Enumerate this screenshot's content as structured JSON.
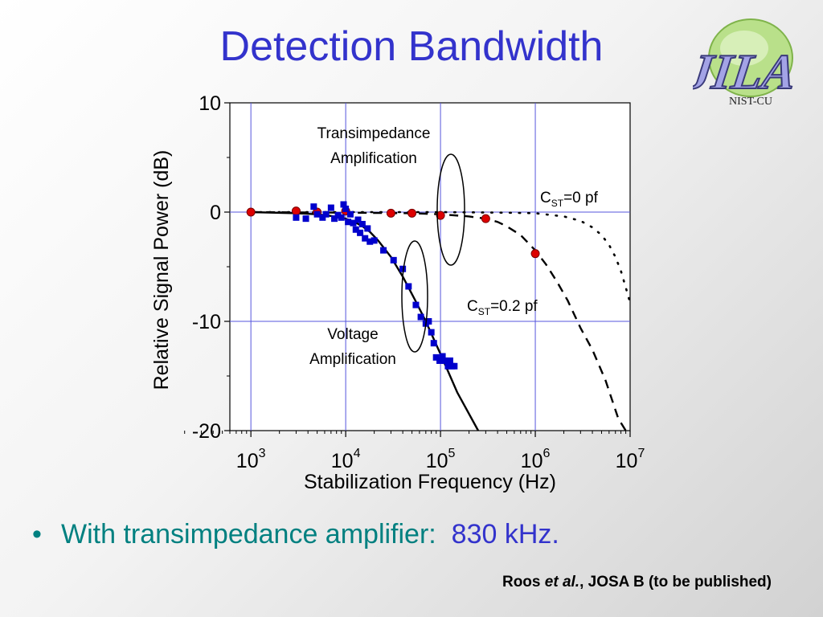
{
  "slide": {
    "title": "Detection Bandwidth",
    "bullet_marker": "•",
    "bullet_text": "With transimpedance amplifier:",
    "bullet_value": "830 kHz.",
    "citation_author": "Roos ",
    "citation_etal": "et al.",
    "citation_rest": ", JOSA B (to be published)",
    "logo_text": "JILA",
    "logo_subtext": "NIST-CU"
  },
  "colors": {
    "title": "#3333cc",
    "bullet": "#008080",
    "highlight": "#3333cc",
    "grid": "#5555dd",
    "red_points": "#dd0000",
    "blue_points": "#0000cc"
  },
  "chart_data": {
    "type": "scatter",
    "x_scale": "log",
    "xlim": [
      600,
      10000000
    ],
    "ylim": [
      -20,
      10
    ],
    "xlabel": "Stabilization Frequency (Hz)",
    "ylabel": "Relative Signal Power (dB)",
    "x_ticks": [
      {
        "base": "10",
        "exp": "3",
        "value": 1000
      },
      {
        "base": "10",
        "exp": "4",
        "value": 10000
      },
      {
        "base": "10",
        "exp": "5",
        "value": 100000
      },
      {
        "base": "10",
        "exp": "6",
        "value": 1000000
      },
      {
        "base": "10",
        "exp": "7",
        "value": 10000000
      }
    ],
    "y_ticks": [
      {
        "label": "10",
        "value": 10
      },
      {
        "label": "0",
        "value": 0
      },
      {
        "label": "-10",
        "value": -10
      },
      {
        "label": "-20",
        "value": -20
      }
    ],
    "grid_x": [
      1000,
      10000,
      100000,
      1000000
    ],
    "grid_y": [
      0,
      -10
    ],
    "annotations": {
      "trans_line1": "Transimpedance",
      "trans_line2": "Amplification",
      "volt_line1": "Voltage",
      "volt_line2": "Amplification",
      "c0_main": "C",
      "c0_sub": "ST",
      "c0_rest": "=0 pf",
      "c02_main": "C",
      "c02_sub": "ST",
      "c02_rest": "=0.2 pf"
    },
    "series": [
      {
        "marker": "circle",
        "x": [
          1000,
          3000,
          5000,
          10000,
          30000,
          50000,
          100000,
          300000,
          1000000
        ],
        "y": [
          0.0,
          0.1,
          0.0,
          0.1,
          -0.1,
          -0.1,
          -0.3,
          -0.6,
          -3.8
        ]
      },
      {
        "marker": "square",
        "x": [
          3000,
          3800,
          4600,
          5000,
          5700,
          6200,
          7000,
          7600,
          8300,
          9000,
          9500,
          10000,
          10600,
          11200,
          12000,
          12800,
          13500,
          14200,
          15000,
          16000,
          17000,
          18000,
          20000,
          25000,
          32000,
          40000,
          46000,
          55000,
          62000,
          70000,
          75000,
          80000,
          85000,
          90000,
          98000,
          105000,
          112000,
          120000,
          126000,
          132000,
          140000
        ],
        "y": [
          -0.5,
          -0.6,
          0.5,
          -0.2,
          -0.5,
          -0.2,
          0.4,
          -0.6,
          -0.3,
          -0.5,
          0.7,
          0.3,
          -0.9,
          -0.2,
          -1.0,
          -1.6,
          -0.7,
          -1.9,
          -1.1,
          -2.4,
          -1.5,
          -2.7,
          -2.6,
          -3.5,
          -4.4,
          -5.2,
          -6.8,
          -8.5,
          -9.6,
          -10.2,
          -10.0,
          -11.0,
          -12.0,
          -13.3,
          -13.6,
          -13.2,
          -13.6,
          -14.1,
          -13.6,
          -14.1,
          -14.1
        ]
      }
    ],
    "lines": [
      {
        "style": "solid",
        "x": [
          1000,
          3000,
          5000,
          7000,
          10000,
          13000,
          15000,
          18000,
          22000,
          30000,
          40000,
          55000,
          70000,
          100000,
          150000,
          250000
        ],
        "y": [
          0.0,
          -0.1,
          -0.2,
          -0.35,
          -0.6,
          -1.0,
          -1.3,
          -1.8,
          -2.6,
          -4.1,
          -5.9,
          -8.2,
          -10.0,
          -13.0,
          -16.5,
          -20.0
        ]
      },
      {
        "style": "dashed",
        "x": [
          1000,
          10000,
          50000,
          100000,
          200000,
          300000,
          400000,
          500000,
          700000,
          1000000,
          1300000,
          1700000,
          2200000,
          3000000,
          4000000,
          5500000,
          7500000,
          9000000
        ],
        "y": [
          0.0,
          -0.05,
          -0.1,
          -0.2,
          -0.4,
          -0.6,
          -0.9,
          -1.3,
          -2.1,
          -3.5,
          -4.8,
          -6.4,
          -8.1,
          -10.6,
          -12.6,
          -15.4,
          -18.9,
          -20.0
        ]
      },
      {
        "style": "dotted",
        "x": [
          1000,
          100000,
          500000,
          1000000,
          2000000,
          3000000,
          4000000,
          5000000,
          6000000,
          7000000,
          8000000,
          9000000,
          10000000
        ],
        "y": [
          0.0,
          0.0,
          -0.05,
          -0.1,
          -0.4,
          -0.8,
          -1.4,
          -2.1,
          -3.0,
          -4.1,
          -5.4,
          -6.9,
          -8.3
        ]
      }
    ]
  }
}
